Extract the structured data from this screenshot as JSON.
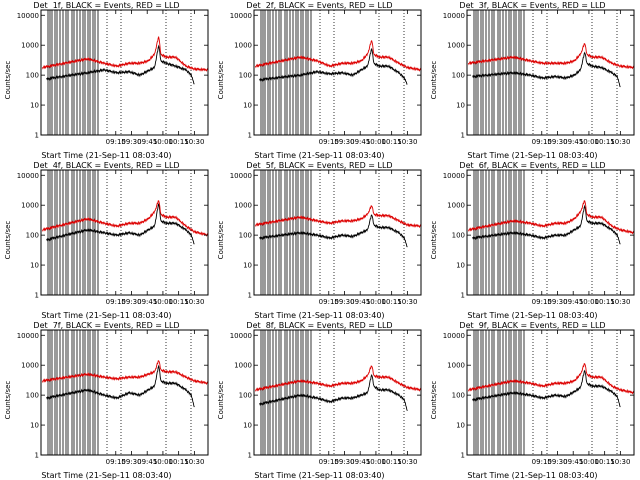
{
  "colors": {
    "events": "#000000",
    "lld": "#dd0000",
    "frame": "#000000"
  },
  "chart_data": [
    {
      "type": "line",
      "title": "Det  1f, BLACK = Events, RED = LLD",
      "xlabel": "Start Time (21-Sep-11 08:03:40)",
      "ylabel": "Counts/sec",
      "yscale": "log",
      "ylim": [
        1,
        15000
      ],
      "xlim": [
        "08:03:40",
        "10:43:00"
      ],
      "xticks": [
        "09:15",
        "09:30",
        "09:45",
        "10:00",
        "10:15",
        "10:30"
      ],
      "yticks": [
        "1",
        "10",
        "100",
        "1000",
        "10000"
      ],
      "grid": false,
      "legend": "none",
      "series": [
        {
          "name": "Events",
          "x": [
            "08:09",
            "08:48",
            "09:04",
            "09:16",
            "09:28",
            "09:38",
            "09:46",
            "09:52",
            "09:56",
            "09:58",
            "10:03",
            "10:12",
            "10:22",
            "10:27",
            "10:30"
          ],
          "values": [
            75,
            120,
            150,
            120,
            130,
            100,
            140,
            180,
            1000,
            300,
            250,
            200,
            150,
            100,
            50
          ]
        },
        {
          "name": "LLD",
          "x": [
            "08:05",
            "08:48",
            "09:04",
            "09:16",
            "09:28",
            "09:38",
            "09:46",
            "09:52",
            "09:56",
            "09:58",
            "10:03",
            "10:12",
            "10:22",
            "10:30",
            "10:43"
          ],
          "values": [
            180,
            350,
            250,
            200,
            250,
            250,
            300,
            500,
            2000,
            500,
            400,
            400,
            200,
            160,
            150
          ]
        }
      ]
    },
    {
      "type": "line",
      "title": "Det  2f, BLACK = Events, RED = LLD",
      "xlabel": "Start Time (21-Sep-11 08:03:40)",
      "ylabel": "Counts/sec",
      "yscale": "log",
      "ylim": [
        1,
        15000
      ],
      "xlim": [
        "08:03:40",
        "10:43:00"
      ],
      "xticks": [
        "09:15",
        "09:30",
        "09:45",
        "10:00",
        "10:15",
        "10:30"
      ],
      "yticks": [
        "1",
        "10",
        "100",
        "1000",
        "10000"
      ],
      "grid": false,
      "legend": "none",
      "series": [
        {
          "name": "Events",
          "x": [
            "08:09",
            "08:48",
            "09:04",
            "09:16",
            "09:28",
            "09:38",
            "09:46",
            "09:52",
            "09:56",
            "09:58",
            "10:03",
            "10:12",
            "10:22",
            "10:27",
            "10:30"
          ],
          "values": [
            70,
            100,
            130,
            110,
            120,
            100,
            150,
            200,
            800,
            250,
            200,
            200,
            120,
            80,
            50
          ]
        },
        {
          "name": "LLD",
          "x": [
            "08:05",
            "08:48",
            "09:04",
            "09:16",
            "09:28",
            "09:38",
            "09:46",
            "09:52",
            "09:56",
            "09:58",
            "10:03",
            "10:12",
            "10:22",
            "10:30",
            "10:43"
          ],
          "values": [
            200,
            400,
            300,
            200,
            250,
            250,
            300,
            500,
            1500,
            500,
            400,
            400,
            250,
            180,
            150
          ]
        }
      ]
    },
    {
      "type": "line",
      "title": "Det  3f, BLACK = Events, RED = LLD",
      "xlabel": "Start Time (21-Sep-11 08:03:40)",
      "ylabel": "Counts/sec",
      "yscale": "log",
      "ylim": [
        1,
        15000
      ],
      "xlim": [
        "08:03:40",
        "10:43:00"
      ],
      "xticks": [
        "09:15",
        "09:30",
        "09:45",
        "10:00",
        "10:15",
        "10:30"
      ],
      "yticks": [
        "1",
        "10",
        "100",
        "1000",
        "10000"
      ],
      "grid": false,
      "legend": "none",
      "series": [
        {
          "name": "Events",
          "x": [
            "08:09",
            "08:48",
            "09:04",
            "09:16",
            "09:28",
            "09:38",
            "09:46",
            "09:52",
            "09:56",
            "09:58",
            "10:03",
            "10:12",
            "10:22",
            "10:27",
            "10:30"
          ],
          "values": [
            90,
            120,
            100,
            80,
            90,
            80,
            100,
            150,
            600,
            250,
            200,
            180,
            120,
            90,
            40
          ]
        },
        {
          "name": "LLD",
          "x": [
            "08:05",
            "08:48",
            "09:04",
            "09:16",
            "09:28",
            "09:38",
            "09:46",
            "09:52",
            "09:56",
            "09:58",
            "10:03",
            "10:12",
            "10:22",
            "10:30",
            "10:43"
          ],
          "values": [
            250,
            400,
            300,
            250,
            250,
            250,
            300,
            500,
            1200,
            500,
            400,
            400,
            250,
            200,
            180
          ]
        }
      ]
    },
    {
      "type": "line",
      "title": "Det  4f, BLACK = Events, RED = LLD",
      "xlabel": "Start Time (21-Sep-11 08:03:40)",
      "ylabel": "Counts/sec",
      "yscale": "log",
      "ylim": [
        1,
        15000
      ],
      "xlim": [
        "08:03:40",
        "10:43:00"
      ],
      "xticks": [
        "09:15",
        "09:30",
        "09:45",
        "10:00",
        "10:15",
        "10:30"
      ],
      "yticks": [
        "1",
        "10",
        "100",
        "1000",
        "10000"
      ],
      "grid": false,
      "legend": "none",
      "series": [
        {
          "name": "Events",
          "x": [
            "08:09",
            "08:48",
            "09:04",
            "09:16",
            "09:28",
            "09:38",
            "09:46",
            "09:52",
            "09:56",
            "09:58",
            "10:03",
            "10:12",
            "10:22",
            "10:27",
            "10:30"
          ],
          "values": [
            70,
            150,
            120,
            100,
            120,
            100,
            150,
            200,
            1200,
            300,
            250,
            250,
            150,
            100,
            50
          ]
        },
        {
          "name": "LLD",
          "x": [
            "08:05",
            "08:48",
            "09:04",
            "09:16",
            "09:28",
            "09:38",
            "09:46",
            "09:52",
            "09:56",
            "09:58",
            "10:03",
            "10:12",
            "10:22",
            "10:30",
            "10:43"
          ],
          "values": [
            150,
            350,
            250,
            200,
            250,
            250,
            350,
            600,
            1500,
            500,
            400,
            400,
            200,
            130,
            100
          ]
        }
      ]
    },
    {
      "type": "line",
      "title": "Det  5f, BLACK = Events, RED = LLD",
      "xlabel": "Start Time (21-Sep-11 08:03:40)",
      "ylabel": "Counts/sec",
      "yscale": "log",
      "ylim": [
        1,
        15000
      ],
      "xlim": [
        "08:03:40",
        "10:43:00"
      ],
      "xticks": [
        "09:15",
        "09:30",
        "09:45",
        "10:00",
        "10:15",
        "10:30"
      ],
      "yticks": [
        "1",
        "10",
        "100",
        "1000",
        "10000"
      ],
      "grid": false,
      "legend": "none",
      "series": [
        {
          "name": "Events",
          "x": [
            "08:09",
            "08:48",
            "09:04",
            "09:16",
            "09:28",
            "09:38",
            "09:46",
            "09:52",
            "09:56",
            "09:58",
            "10:03",
            "10:12",
            "10:22",
            "10:27",
            "10:30"
          ],
          "values": [
            80,
            120,
            100,
            80,
            100,
            90,
            120,
            150,
            500,
            220,
            180,
            180,
            120,
            80,
            40
          ]
        },
        {
          "name": "LLD",
          "x": [
            "08:05",
            "08:48",
            "09:04",
            "09:16",
            "09:28",
            "09:38",
            "09:46",
            "09:52",
            "09:56",
            "09:58",
            "10:03",
            "10:12",
            "10:22",
            "10:30",
            "10:43"
          ],
          "values": [
            220,
            400,
            300,
            250,
            300,
            300,
            350,
            500,
            1000,
            500,
            450,
            450,
            300,
            220,
            200
          ]
        }
      ]
    },
    {
      "type": "line",
      "title": "Det  6f, BLACK = Events, RED = LLD",
      "xlabel": "Start Time (21-Sep-11 08:03:40)",
      "ylabel": "Counts/sec",
      "yscale": "log",
      "ylim": [
        1,
        15000
      ],
      "xlim": [
        "08:03:40",
        "10:43:00"
      ],
      "xticks": [
        "09:15",
        "09:30",
        "09:45",
        "10:00",
        "10:15",
        "10:30"
      ],
      "yticks": [
        "1",
        "10",
        "100",
        "1000",
        "10000"
      ],
      "grid": false,
      "legend": "none",
      "series": [
        {
          "name": "Events",
          "x": [
            "08:09",
            "08:48",
            "09:04",
            "09:16",
            "09:28",
            "09:38",
            "09:46",
            "09:52",
            "09:56",
            "09:58",
            "10:03",
            "10:12",
            "10:22",
            "10:27",
            "10:30"
          ],
          "values": [
            80,
            120,
            100,
            80,
            100,
            100,
            150,
            200,
            1000,
            300,
            250,
            250,
            150,
            100,
            50
          ]
        },
        {
          "name": "LLD",
          "x": [
            "08:05",
            "08:48",
            "09:04",
            "09:16",
            "09:28",
            "09:38",
            "09:46",
            "09:52",
            "09:56",
            "09:58",
            "10:03",
            "10:12",
            "10:22",
            "10:30",
            "10:43"
          ],
          "values": [
            150,
            300,
            250,
            200,
            250,
            250,
            350,
            600,
            1500,
            500,
            400,
            400,
            200,
            150,
            120
          ]
        }
      ]
    },
    {
      "type": "line",
      "title": "Det  7f, BLACK = Events, RED = LLD",
      "xlabel": "Start Time (21-Sep-11 08:03:40)",
      "ylabel": "Counts/sec",
      "yscale": "log",
      "ylim": [
        1,
        15000
      ],
      "xlim": [
        "08:03:40",
        "10:43:00"
      ],
      "xticks": [
        "09:15",
        "09:30",
        "09:45",
        "10:00",
        "10:15",
        "10:30"
      ],
      "yticks": [
        "1",
        "10",
        "100",
        "1000",
        "10000"
      ],
      "grid": false,
      "legend": "none",
      "series": [
        {
          "name": "Events",
          "x": [
            "08:09",
            "08:48",
            "09:04",
            "09:16",
            "09:28",
            "09:38",
            "09:46",
            "09:52",
            "09:56",
            "09:58",
            "10:03",
            "10:12",
            "10:22",
            "10:27",
            "10:30"
          ],
          "values": [
            80,
            150,
            100,
            80,
            120,
            100,
            150,
            200,
            1000,
            300,
            250,
            250,
            150,
            100,
            40
          ]
        },
        {
          "name": "LLD",
          "x": [
            "08:05",
            "08:48",
            "09:04",
            "09:16",
            "09:28",
            "09:38",
            "09:46",
            "09:52",
            "09:56",
            "09:58",
            "10:03",
            "10:12",
            "10:22",
            "10:30",
            "10:43"
          ],
          "values": [
            300,
            500,
            400,
            350,
            400,
            400,
            500,
            600,
            1500,
            700,
            600,
            600,
            400,
            300,
            250
          ]
        }
      ]
    },
    {
      "type": "line",
      "title": "Det  8f, BLACK = Events, RED = LLD",
      "xlabel": "Start Time (21-Sep-11 08:03:40)",
      "ylabel": "Counts/sec",
      "yscale": "log",
      "ylim": [
        1,
        15000
      ],
      "xlim": [
        "08:03:40",
        "10:43:00"
      ],
      "xticks": [
        "09:15",
        "09:30",
        "09:45",
        "10:00",
        "10:15",
        "10:30"
      ],
      "yticks": [
        "1",
        "10",
        "100",
        "1000",
        "10000"
      ],
      "grid": false,
      "legend": "none",
      "series": [
        {
          "name": "Events",
          "x": [
            "08:09",
            "08:48",
            "09:04",
            "09:16",
            "09:28",
            "09:38",
            "09:46",
            "09:52",
            "09:56",
            "09:58",
            "10:03",
            "10:12",
            "10:22",
            "10:27",
            "10:30"
          ],
          "values": [
            50,
            100,
            80,
            60,
            80,
            80,
            100,
            120,
            500,
            200,
            150,
            150,
            100,
            70,
            30
          ]
        },
        {
          "name": "LLD",
          "x": [
            "08:05",
            "08:48",
            "09:04",
            "09:16",
            "09:28",
            "09:38",
            "09:46",
            "09:52",
            "09:56",
            "09:58",
            "10:03",
            "10:12",
            "10:22",
            "10:30",
            "10:43"
          ],
          "values": [
            150,
            300,
            250,
            200,
            250,
            250,
            300,
            450,
            1000,
            450,
            400,
            400,
            250,
            180,
            150
          ]
        }
      ]
    },
    {
      "type": "line",
      "title": "Det  9f, BLACK = Events, RED = LLD",
      "xlabel": "Start Time (21-Sep-11 08:03:40)",
      "ylabel": "Counts/sec",
      "yscale": "log",
      "ylim": [
        1,
        15000
      ],
      "xlim": [
        "08:03:40",
        "10:43:00"
      ],
      "xticks": [
        "09:15",
        "09:30",
        "09:45",
        "10:00",
        "10:15",
        "10:30"
      ],
      "yticks": [
        "1",
        "10",
        "100",
        "1000",
        "10000"
      ],
      "grid": false,
      "legend": "none",
      "series": [
        {
          "name": "Events",
          "x": [
            "08:09",
            "08:48",
            "09:04",
            "09:16",
            "09:28",
            "09:38",
            "09:46",
            "09:52",
            "09:56",
            "09:58",
            "10:03",
            "10:12",
            "10:22",
            "10:27",
            "10:30"
          ],
          "values": [
            70,
            120,
            100,
            80,
            100,
            90,
            130,
            180,
            700,
            250,
            200,
            200,
            130,
            90,
            40
          ]
        },
        {
          "name": "LLD",
          "x": [
            "08:05",
            "08:48",
            "09:04",
            "09:16",
            "09:28",
            "09:38",
            "09:46",
            "09:52",
            "09:56",
            "09:58",
            "10:03",
            "10:12",
            "10:22",
            "10:30",
            "10:43"
          ],
          "values": [
            150,
            300,
            250,
            200,
            250,
            250,
            300,
            500,
            1200,
            500,
            400,
            400,
            200,
            150,
            120
          ]
        }
      ]
    }
  ]
}
